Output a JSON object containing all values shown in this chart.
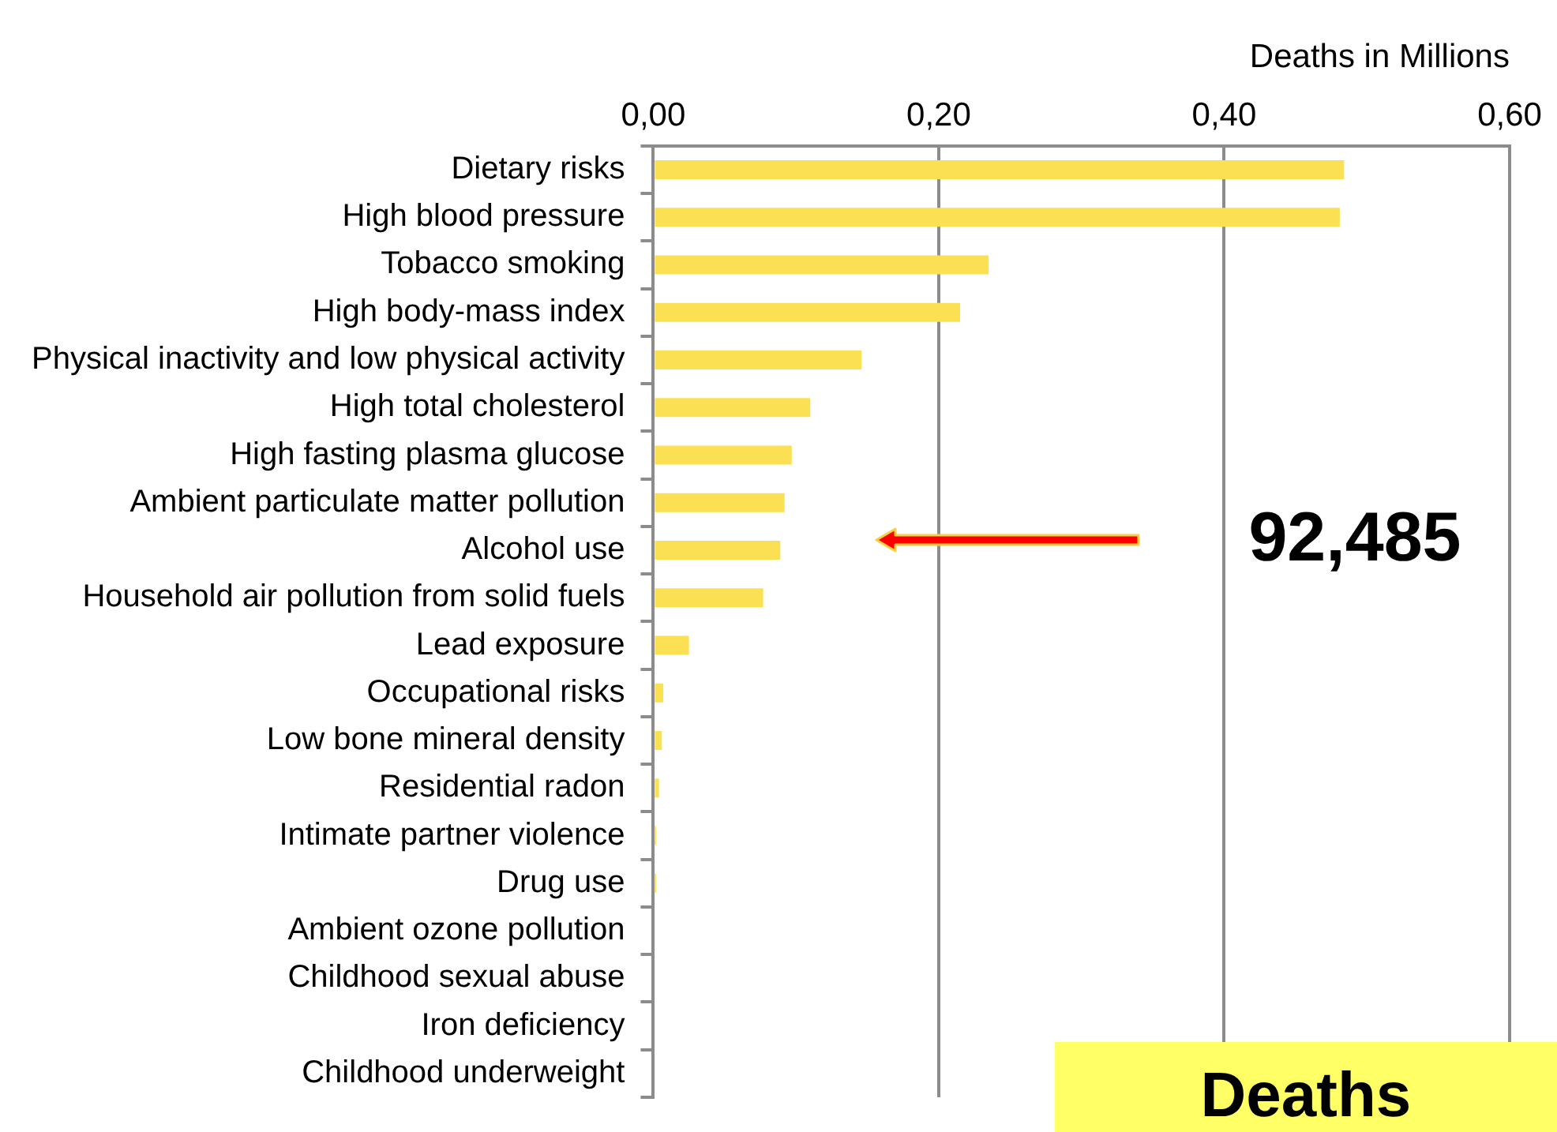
{
  "chart_data": {
    "type": "bar",
    "orientation": "horizontal",
    "xlabel": "Deaths in Millions",
    "categories": [
      "Dietary risks",
      "High blood pressure",
      "Tobacco smoking",
      "High body-mass index",
      "Physical inactivity and low physical activity",
      "High total cholesterol",
      "High fasting plasma glucose",
      "Ambient particulate matter pollution",
      "Alcohol use",
      "Household air pollution from solid fuels",
      "Lead exposure",
      "Occupational risks",
      "Low bone mineral density",
      "Residential radon",
      "Intimate partner violence",
      "Drug use",
      "Ambient ozone pollution",
      "Childhood sexual abuse",
      "Iron deficiency",
      "Childhood underweight"
    ],
    "values": [
      0.484,
      0.481,
      0.235,
      0.215,
      0.146,
      0.11,
      0.097,
      0.092,
      0.089,
      0.077,
      0.025,
      0.007,
      0.006,
      0.004,
      0.002,
      0.002,
      0,
      0,
      0,
      0
    ],
    "color": "#fbe053",
    "xlim": [
      0,
      0.6
    ],
    "xticks": [
      {
        "value": 0,
        "label": "0,00"
      },
      {
        "value": 0.2,
        "label": "0,20"
      },
      {
        "value": 0.4,
        "label": "0,40"
      },
      {
        "value": 0.6,
        "label": "0,60"
      }
    ],
    "grid": "x",
    "legend": false,
    "annotations": [
      "92,485",
      "Deaths"
    ]
  }
}
